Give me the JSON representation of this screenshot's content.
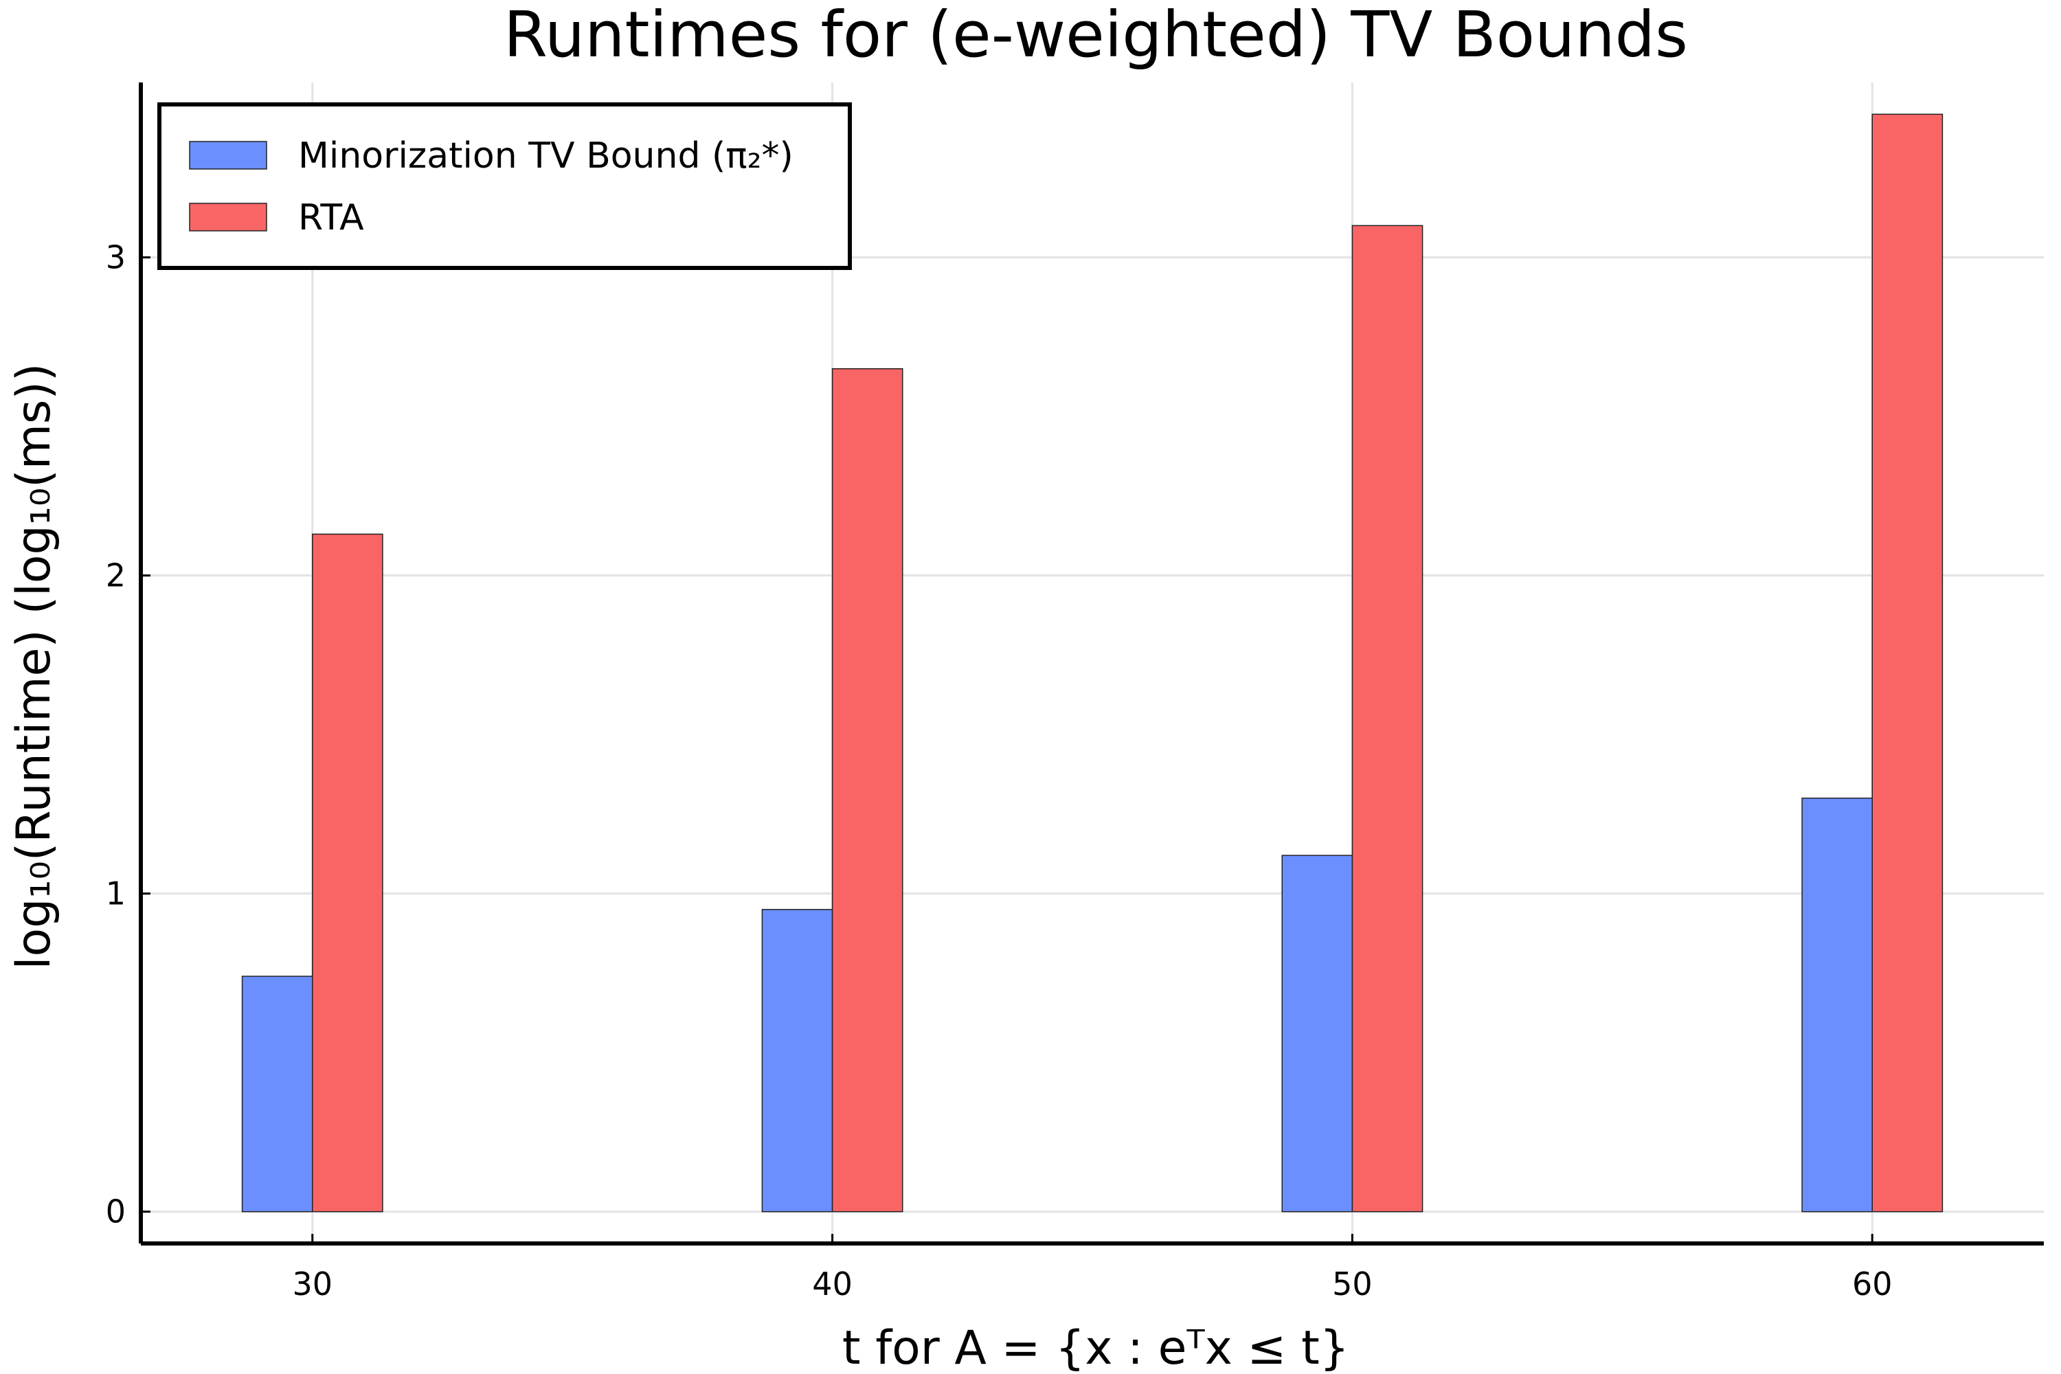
{
  "chart_data": {
    "type": "bar",
    "title": "Runtimes for (e-weighted) TV Bounds",
    "xlabel": "t for A = {x : eᵀx ≤ t}",
    "ylabel": "log₁₀(Runtime) (log₁₀(ms))",
    "categories": [
      30,
      40,
      50,
      60
    ],
    "xlim": [
      26.7,
      63.3
    ],
    "ylim": [
      -0.1,
      3.55
    ],
    "yticks": [
      0,
      1,
      2,
      3
    ],
    "grid": true,
    "legend_position": "top-left",
    "series": [
      {
        "name": "Minorization TV Bound (π₂*)",
        "color": "#6b8fff",
        "values": [
          0.74,
          0.95,
          1.12,
          1.3
        ]
      },
      {
        "name": "RTA",
        "color": "#f96565",
        "values": [
          2.13,
          2.65,
          3.1,
          3.45
        ]
      }
    ]
  }
}
